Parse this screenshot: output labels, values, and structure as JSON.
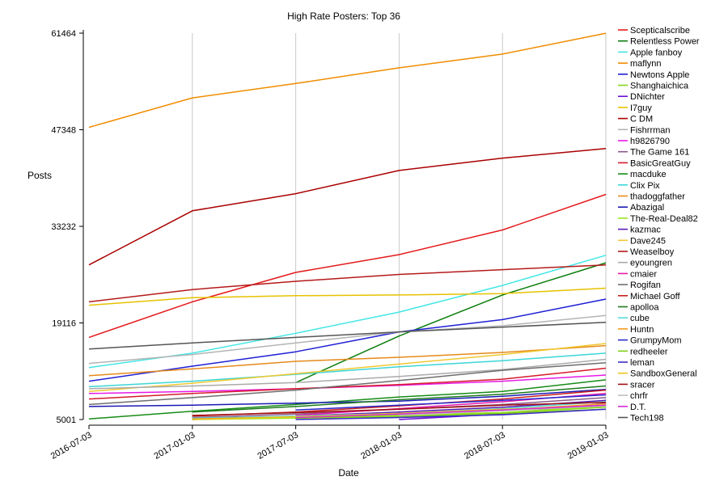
{
  "chart_data": {
    "type": "line",
    "title": "High Rate Posters: Top 36",
    "xlabel": "Date",
    "ylabel": "Posts",
    "x": [
      "2016-07-03",
      "2017-01-03",
      "2017-07-03",
      "2018-01-03",
      "2018-07-03",
      "2019-01-03"
    ],
    "x_tick_labels": [
      "2016-07-03",
      "2017-01-03",
      "2017-07-03",
      "2018-01-03",
      "2018-07-03",
      "2019-01-03"
    ],
    "y_ticks": [
      5001,
      19116,
      33232,
      47348,
      61464
    ],
    "ylim": [
      5001,
      61464
    ],
    "grid": "vertical",
    "legend_position": "right",
    "series": [
      {
        "name": "Scepticalscribe",
        "color": "#e41a1c",
        "values": [
          17000,
          22200,
          26500,
          29100,
          32700,
          37900
        ]
      },
      {
        "name": "Relentless Power",
        "color": "#0b7d0b",
        "values": [
          null,
          null,
          10400,
          17200,
          23200,
          27900
        ]
      },
      {
        "name": "Apple fanboy",
        "color": "#44e6e6",
        "values": [
          12600,
          14700,
          17600,
          20700,
          24600,
          29000
        ]
      },
      {
        "name": "maflynn",
        "color": "#f08c00",
        "values": [
          47700,
          52000,
          54100,
          56400,
          58400,
          61450
        ]
      },
      {
        "name": "Newtons Apple",
        "color": "#1f1fd6",
        "values": [
          10600,
          12800,
          14900,
          17800,
          19600,
          22600
        ]
      },
      {
        "name": "Shanghaichica",
        "color": "#86d61a",
        "values": [
          null,
          null,
          5300,
          5700,
          6000,
          6800
        ]
      },
      {
        "name": "DNichter",
        "color": "#6a0fd6",
        "values": [
          null,
          null,
          null,
          5001,
          5800,
          7400
        ]
      },
      {
        "name": "I7guy",
        "color": "#e6c200",
        "values": [
          21700,
          22800,
          23100,
          23200,
          23400,
          24200
        ]
      },
      {
        "name": "C DM",
        "color": "#aa0000",
        "values": [
          27600,
          35500,
          38000,
          41400,
          43200,
          44600
        ]
      },
      {
        "name": "Fishrrman",
        "color": "#b4b4b4",
        "values": [
          13200,
          14500,
          16200,
          17800,
          18700,
          20200
        ]
      },
      {
        "name": "h9826790",
        "color": "#e61ae6",
        "values": [
          8800,
          9100,
          9500,
          10000,
          10600,
          11500
        ]
      },
      {
        "name": "The Game 161",
        "color": "#8c5a8c",
        "values": [
          null,
          5300,
          5800,
          6500,
          7200,
          8200
        ]
      },
      {
        "name": "BasicGreatGuy",
        "color": "#d61a2a",
        "values": [
          8000,
          8800,
          9500,
          10100,
          10900,
          12500
        ]
      },
      {
        "name": "macduke",
        "color": "#168c16",
        "values": [
          5100,
          6200,
          7200,
          8300,
          9100,
          10800
        ]
      },
      {
        "name": "Clix Pix",
        "color": "#3cd6d6",
        "values": [
          9800,
          10600,
          11600,
          12700,
          13600,
          14700
        ]
      },
      {
        "name": "thadoggfather",
        "color": "#e68a1a",
        "values": [
          11400,
          12400,
          13500,
          14100,
          14800,
          15800
        ]
      },
      {
        "name": "Abazigal",
        "color": "#1a1ab4",
        "values": [
          6900,
          7100,
          7400,
          7700,
          8400,
          9400
        ]
      },
      {
        "name": "The-Real-Deal82",
        "color": "#9ae61a",
        "values": [
          null,
          5001,
          5200,
          5500,
          6000,
          7000
        ]
      },
      {
        "name": "kazmac",
        "color": "#5a1ab4",
        "values": [
          null,
          5001,
          5500,
          6100,
          6800,
          7800
        ]
      },
      {
        "name": "Dave245",
        "color": "#f0c830",
        "values": [
          9100,
          10300,
          11700,
          13100,
          14500,
          16100
        ]
      },
      {
        "name": "Weaselboy",
        "color": "#b41a1a",
        "values": [
          22200,
          24000,
          25200,
          26200,
          26900,
          27600
        ]
      },
      {
        "name": "eyoungren",
        "color": "#aaaaaa",
        "values": [
          9500,
          9900,
          10400,
          11300,
          12300,
          13800
        ]
      },
      {
        "name": "cmaier",
        "color": "#e61aaa",
        "values": [
          null,
          null,
          5600,
          6600,
          7600,
          8800
        ]
      },
      {
        "name": "Rogifan",
        "color": "#6e6e6e",
        "values": [
          7200,
          8200,
          9300,
          10700,
          12200,
          13300
        ]
      },
      {
        "name": "Michael Goff",
        "color": "#c81e1e",
        "values": [
          null,
          5500,
          6100,
          7000,
          8000,
          9300
        ]
      },
      {
        "name": "apolloa",
        "color": "#1e7a1e",
        "values": [
          null,
          6100,
          6900,
          7900,
          8700,
          9900
        ]
      },
      {
        "name": "cube",
        "color": "#55dada",
        "values": [
          null,
          5200,
          5500,
          5900,
          6600,
          7600
        ]
      },
      {
        "name": "Huntn",
        "color": "#f59a1a",
        "values": [
          null,
          5100,
          5400,
          5800,
          6400,
          7300
        ]
      },
      {
        "name": "GrumpyMom",
        "color": "#2a2ad0",
        "values": [
          null,
          null,
          6400,
          7100,
          7800,
          8600
        ]
      },
      {
        "name": "redheeler",
        "color": "#7fcf1a",
        "values": [
          null,
          null,
          5200,
          5400,
          5900,
          6500
        ]
      },
      {
        "name": "leman",
        "color": "#3a2ac8",
        "values": [
          null,
          null,
          5001,
          5300,
          5700,
          6500
        ]
      },
      {
        "name": "SandboxGeneral",
        "color": "#ecc41a",
        "values": [
          null,
          5001,
          5400,
          5900,
          6500,
          7000
        ]
      },
      {
        "name": "sracer",
        "color": "#a01010",
        "values": [
          null,
          5600,
          6000,
          6500,
          7100,
          7500
        ]
      },
      {
        "name": "chrfr",
        "color": "#bebebe",
        "values": [
          null,
          null,
          null,
          5600,
          6300,
          7000
        ]
      },
      {
        "name": "D.T.",
        "color": "#d62ad6",
        "values": [
          null,
          null,
          5300,
          5800,
          6400,
          7100
        ]
      },
      {
        "name": "Tech198",
        "color": "#555555",
        "values": [
          15300,
          16200,
          17000,
          17800,
          18500,
          19200
        ]
      }
    ]
  }
}
